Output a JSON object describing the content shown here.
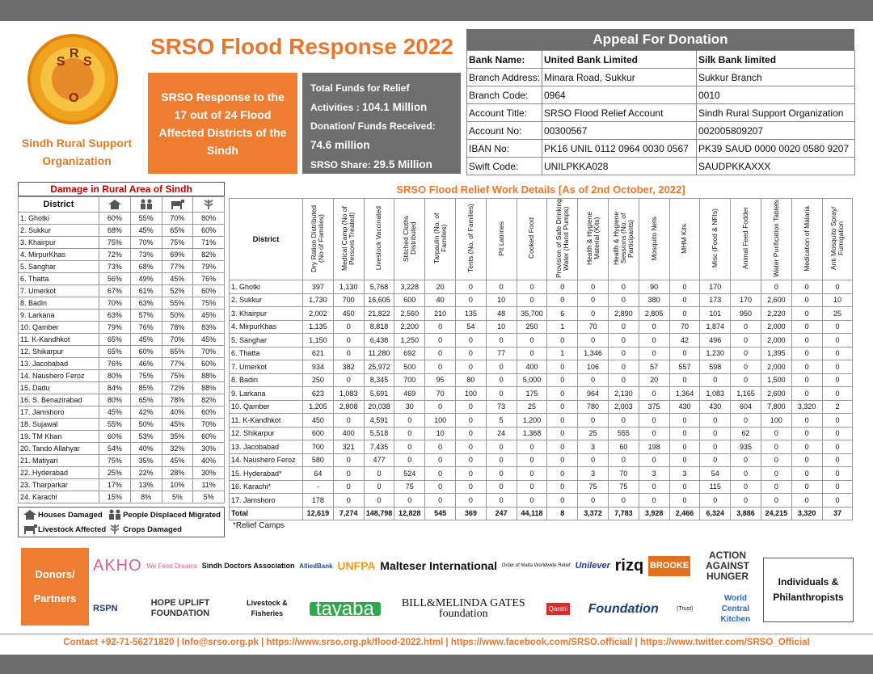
{
  "header": {
    "logo_letters": [
      "S",
      "R",
      "S",
      "O"
    ],
    "org_name": "Sindh Rural Support Organization",
    "title": "SRSO Flood Response 2022",
    "response_text": "SRSO Response to the 17 out of 24 Flood Affected Districts of the Sindh",
    "funds": [
      {
        "label": "Total Funds for Relief Activities :",
        "amount": "104.1 Million"
      },
      {
        "label": "Donation/ Funds Received:",
        "amount": "74.6 million"
      },
      {
        "label": "SRSO Share:",
        "amount": "29.5 Million"
      }
    ]
  },
  "donation": {
    "title": "Appeal For Donation",
    "rows": [
      [
        "Bank Name:",
        "United Bank Limited",
        "Silk Bank limited"
      ],
      [
        "Branch Address:",
        "Minara Road, Sukkur",
        "Sukkur Branch"
      ],
      [
        "Branch Code:",
        "0964",
        "0010"
      ],
      [
        "Account Title:",
        "SRSO Flood Relief Account",
        "Sindh Rural Support Organization"
      ],
      [
        "Account No:",
        "00300567",
        "002005809207"
      ],
      [
        "IBAN No:",
        "PK16 UNIL 0112 0964 0030 0567",
        "PK39 SAUD 0000 0020 0580 9207"
      ],
      [
        "Swift Code:",
        "UNILPKKA028",
        "SAUDPKKAXXX"
      ]
    ]
  },
  "damage": {
    "title": "Damage in Rural Area of Sindh",
    "district_header": "District",
    "rows": [
      [
        "1. Ghotki",
        "60%",
        "55%",
        "70%",
        "80%"
      ],
      [
        "2. Sukkur",
        "68%",
        "45%",
        "65%",
        "60%"
      ],
      [
        "3. Khairpur",
        "75%",
        "70%",
        "75%",
        "71%"
      ],
      [
        "4. MirpurKhas",
        "72%",
        "73%",
        "69%",
        "82%"
      ],
      [
        "5. Sanghar",
        "73%",
        "68%",
        "77%",
        "79%"
      ],
      [
        "6. Thatta",
        "56%",
        "49%",
        "45%",
        "76%"
      ],
      [
        "7. Umerkot",
        "67%",
        "61%",
        "52%",
        "60%"
      ],
      [
        "8. Badin",
        "70%",
        "63%",
        "55%",
        "75%"
      ],
      [
        "9. Larkana",
        "63%",
        "57%",
        "50%",
        "45%"
      ],
      [
        "10. Qamber",
        "79%",
        "76%",
        "78%",
        "83%"
      ],
      [
        "11. K-Kandhkot",
        "65%",
        "45%",
        "70%",
        "45%"
      ],
      [
        "12. Shikarpur",
        "65%",
        "60%",
        "65%",
        "70%"
      ],
      [
        "13. Jacobabad",
        "76%",
        "46%",
        "77%",
        "60%"
      ],
      [
        "14. Naushero Feroz",
        "80%",
        "75%",
        "75%",
        "88%"
      ],
      [
        "15. Dadu",
        "84%",
        "85%",
        "72%",
        "88%"
      ],
      [
        "16. S. Benazirabad",
        "80%",
        "65%",
        "78%",
        "82%"
      ],
      [
        "17. Jamshoro",
        "45%",
        "42%",
        "40%",
        "60%"
      ],
      [
        "18. Sujawal",
        "55%",
        "50%",
        "45%",
        "70%"
      ],
      [
        "19. TM Khan",
        "60%",
        "53%",
        "35%",
        "60%"
      ],
      [
        "20. Tando Allahyar",
        "54%",
        "40%",
        "32%",
        "30%"
      ],
      [
        "21. Matiyari",
        "75%",
        "35%",
        "45%",
        "40%"
      ],
      [
        "22. Hyderabad",
        "25%",
        "22%",
        "28%",
        "30%"
      ],
      [
        "23. Tharparkar",
        "17%",
        "13%",
        "10%",
        "11%"
      ],
      [
        "24. Karachi",
        "15%",
        "8%",
        "5%",
        "5%"
      ]
    ],
    "legend": [
      "Houses Damaged",
      "People Displaced Migrated",
      "Livestock Affected",
      "Crops Damaged"
    ]
  },
  "work": {
    "title": "SRSO Flood Relief Work Details [As of 2nd October, 2022]",
    "columns": [
      "District",
      "Dry Ration Distributed (No of Families)",
      "Medical Camp (No of Persons Treated)",
      "Livestock Vaccinated",
      "Stitched Cloths Distributed",
      "Tarpaulin (No. of Families)",
      "Tents (No. of Families)",
      "Pit Latrines",
      "Cooked Food",
      "Provision of Safe Drinking Water (Hand Pumps)",
      "Health & Hygiene Material (Kits)",
      "Health & Hygiene Sessions (No. of Participants)",
      "Mosquito Nets",
      "MHM Kits",
      "Misc (Food & NFIs)",
      "Animal Feed Fodder",
      "Water Purification Tablets",
      "Medication of Malaria",
      "Anti Mosquito Spray/ Fumigation"
    ],
    "rows": [
      [
        "1. Ghotki",
        "397",
        "1,130",
        "5,768",
        "3,228",
        "20",
        "0",
        "0",
        "0",
        "0",
        "0",
        "0",
        "90",
        "0",
        "170",
        null,
        "0",
        "0",
        "0"
      ],
      [
        "2. Sukkur",
        "1,730",
        "700",
        "16,605",
        "600",
        "40",
        "0",
        "10",
        "0",
        "0",
        "0",
        "0",
        "380",
        "0",
        "173",
        "170",
        "2,600",
        "0",
        "10"
      ],
      [
        "3. Khairpur",
        "2,002",
        "450",
        "21,822",
        "2,560",
        "210",
        "135",
        "48",
        "35,700",
        "6",
        "0",
        "2,890",
        "2,805",
        "0",
        "101",
        "950",
        "2,220",
        "0",
        "25"
      ],
      [
        "4. MirpurKhas",
        "1,135",
        "0",
        "8,818",
        "2,200",
        "0",
        "54",
        "10",
        "250",
        "1",
        "70",
        "0",
        "0",
        "70",
        "1,874",
        "0",
        "2,000",
        "0",
        "0"
      ],
      [
        "5. Sanghar",
        "1,150",
        "0",
        "6,438",
        "1,250",
        "0",
        "0",
        "0",
        "0",
        "0",
        "0",
        "0",
        "0",
        "42",
        "496",
        "0",
        "2,000",
        "0",
        "0"
      ],
      [
        "6. Thatta",
        "621",
        "0",
        "11,280",
        "692",
        "0",
        "0",
        "77",
        "0",
        "1",
        "1,346",
        "0",
        "0",
        "0",
        "1,230",
        "0",
        "1,395",
        "0",
        "0"
      ],
      [
        "7. Umerkot",
        "934",
        "382",
        "25,972",
        "500",
        "0",
        "0",
        "0",
        "400",
        "0",
        "106",
        "0",
        "57",
        "557",
        "598",
        "0",
        "2,000",
        "0",
        "0"
      ],
      [
        "8. Badin",
        "250",
        "0",
        "8,345",
        "700",
        "95",
        "80",
        "0",
        "5,000",
        "0",
        "0",
        "0",
        "20",
        "0",
        "0",
        "0",
        "1,500",
        "0",
        "0"
      ],
      [
        "9. Larkana",
        "623",
        "1,083",
        "5,691",
        "469",
        "70",
        "100",
        "0",
        "175",
        "0",
        "964",
        "2,130",
        "0",
        "1,364",
        "1,083",
        "1,165",
        "2,600",
        "0",
        "0"
      ],
      [
        "10. Qamber",
        "1,205",
        "2,808",
        "20,038",
        "30",
        "0",
        "0",
        "73",
        "25",
        "0",
        "780",
        "2,003",
        "375",
        "430",
        "430",
        "604",
        "7,800",
        "3,320",
        "2"
      ],
      [
        "11. K-Kandhkot",
        "450",
        "0",
        "4,591",
        "0",
        "100",
        "0",
        "5",
        "1,200",
        "0",
        "0",
        "0",
        "0",
        "0",
        "0",
        "0",
        "100",
        "0",
        "0"
      ],
      [
        "12. Shikarpur",
        "600",
        "400",
        "5,518",
        "0",
        "10",
        "0",
        "24",
        "1,368",
        "0",
        "25",
        "555",
        "0",
        "0",
        "0",
        "62",
        "0",
        "0",
        "0"
      ],
      [
        "13. Jacobabad",
        "700",
        "321",
        "7,435",
        "0",
        "0",
        "0",
        "0",
        "0",
        "0",
        "3",
        "60",
        "198",
        "0",
        "0",
        "935",
        "0",
        "0",
        "0"
      ],
      [
        "14. Naushero Feroz",
        "580",
        "0",
        "477",
        "0",
        "0",
        "0",
        "0",
        "0",
        "0",
        "0",
        "0",
        "0",
        "0",
        "0",
        "0",
        "0",
        "0",
        "0"
      ],
      [
        "15. Hyderabad*",
        "64",
        "0",
        "0",
        "524",
        "0",
        "0",
        "0",
        "0",
        "0",
        "3",
        "70",
        "3",
        "3",
        "54",
        "0",
        "0",
        "0",
        "0"
      ],
      [
        "16. Karachi*",
        "-",
        "0",
        "0",
        "75",
        "0",
        "0",
        "0",
        "0",
        "0",
        "75",
        "75",
        "0",
        "0",
        "115",
        "0",
        "0",
        "0",
        "0"
      ],
      [
        "17. Jamshoro",
        "178",
        "0",
        "0",
        "0",
        "0",
        "0",
        "0",
        "0",
        "0",
        "0",
        "0",
        "0",
        "0",
        "0",
        "0",
        "0",
        "0",
        "0"
      ]
    ],
    "total": [
      "Total",
      "12,619",
      "7,274",
      "148,798",
      "12,828",
      "545",
      "369",
      "247",
      "44,118",
      "8",
      "3,372",
      "7,783",
      "3,928",
      "2,466",
      "6,324",
      "3,886",
      "24,215",
      "3,320",
      "37"
    ],
    "note": "*Relief Camps"
  },
  "partners": {
    "label": "Donors/ Partners",
    "row1": [
      "AKHO",
      "We Feed Dreams",
      "Sindh Doctors Association",
      "AlliedBank",
      "UNFPA",
      "Malteser International",
      "Order of Malta Worldwide Relief",
      "Unilever",
      "rizq",
      "BROOKE",
      "ACTION AGAINST HUNGER"
    ],
    "row2": [
      "RSPN",
      "HOPE UPLIFT FOUNDATION",
      "Livestock & Fisheries",
      "tayaba",
      "BILL&MELINDA GATES foundation",
      "Qarshi",
      "Foundation",
      "(Trust)",
      "World Central Kitchen"
    ],
    "individuals": "Individuals & Philanthropists"
  },
  "footer": {
    "contact": "Contact +92-71-56271820 | Info@srso.org.pk | https://www.srso.org.pk/flood-2022.html | https://www.facebook.com/SRSO.official/ | https://www.twitter.com/SRSO_Official"
  }
}
